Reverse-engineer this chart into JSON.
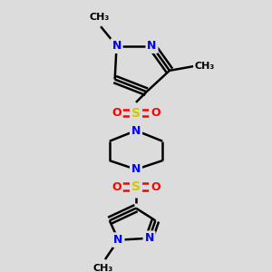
{
  "bg_color": "#dcdcdc",
  "bond_color": "#000000",
  "N_color": "#0000ff",
  "S_color": "#cccc00",
  "O_color": "#ff0000",
  "C_color": "#000000",
  "line_width": 1.8,
  "fig_w": 3.0,
  "fig_h": 3.0,
  "dpi": 100,
  "xlim": [
    0,
    300
  ],
  "ylim": [
    0,
    300
  ]
}
